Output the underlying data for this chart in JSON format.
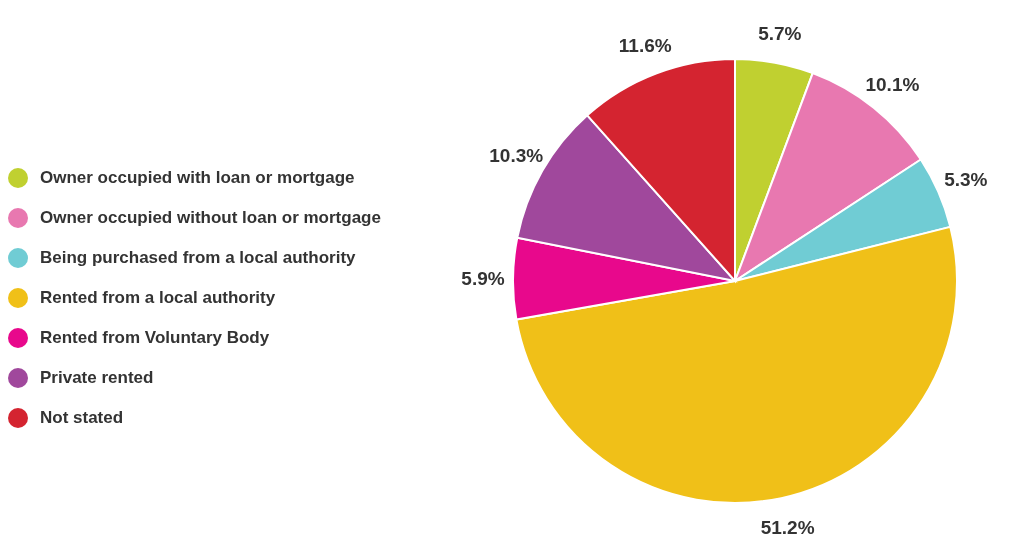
{
  "chart_data": {
    "type": "pie",
    "categories": [
      "Owner occupied with loan or mortgage",
      "Owner occupied without loan or mortgage",
      "Being purchased from a local authority",
      "Rented from a local authority",
      "Rented from Voluntary Body",
      "Private rented",
      "Not stated"
    ],
    "values": [
      5.7,
      10.1,
      5.3,
      51.2,
      5.9,
      10.3,
      11.6
    ],
    "value_labels": [
      "5.7%",
      "10.1%",
      "5.3%",
      "51.2%",
      "5.9%",
      "10.3%",
      "11.6%"
    ],
    "colors": [
      "#c0d030",
      "#e878b0",
      "#70ccd4",
      "#f0c018",
      "#e8088c",
      "#a0489c",
      "#d42430"
    ],
    "legend": "left"
  }
}
